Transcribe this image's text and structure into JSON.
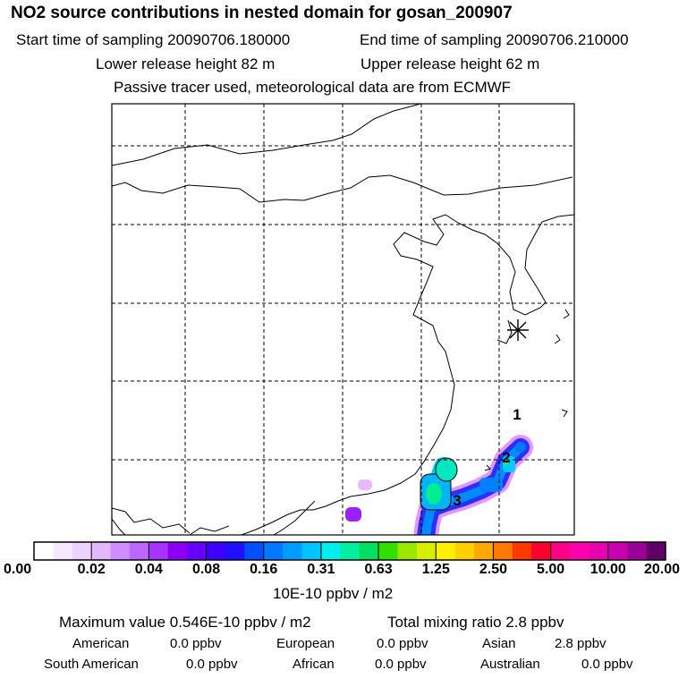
{
  "header": {
    "title": "NO2 source contributions in nested domain for gosan_200907",
    "start_time": "Start time of sampling 20090706.180000",
    "end_time": "End time of sampling 20090706.210000",
    "lower_height": "Lower release height   82 m",
    "upper_height": "Upper release height   62 m",
    "tracer_note": "Passive tracer used, meteorological data are from ECMWF"
  },
  "map": {
    "receptor_marker": "asterisk-icon",
    "labels": [
      "1",
      "2",
      "3"
    ]
  },
  "colorbar": {
    "colors": [
      "#ffffff",
      "#f7e8ff",
      "#efd3ff",
      "#e3b8ff",
      "#cf8cff",
      "#bd66ff",
      "#a832ff",
      "#8b00f5",
      "#6a00ff",
      "#4000ff",
      "#1f10ff",
      "#0050ff",
      "#0078ff",
      "#009cff",
      "#00c4ff",
      "#00eeee",
      "#00f0a0",
      "#00e060",
      "#30e000",
      "#9ae800",
      "#d8ee00",
      "#fff000",
      "#ffd000",
      "#ffa800",
      "#ff7800",
      "#ff3a00",
      "#ff0030",
      "#ff0088",
      "#ff00b0",
      "#e800b0",
      "#c800b0",
      "#9a0099",
      "#600066"
    ],
    "tick_labels": [
      "0.00",
      "0.02",
      "0.04",
      "0.08",
      "0.16",
      "0.31",
      "0.63",
      "1.25",
      "2.50",
      "5.00",
      "10.00",
      "20.00"
    ],
    "unit": "10E-10 ppbv / m2"
  },
  "stats": {
    "max_value": "Maximum value  0.546E-10 ppbv / m2",
    "total_mixing": "Total mixing ratio       2.8 ppbv",
    "american_label": "American",
    "american_value": "0.0 ppbv",
    "european_label": "European",
    "european_value": "0.0 ppbv",
    "asian_label": "Asian",
    "asian_value": "2.8 ppbv",
    "south_american_label": "South American",
    "south_american_value": "0.0 ppbv",
    "african_label": "African",
    "african_value": "0.0 ppbv",
    "australian_label": "Australian",
    "australian_value": "0.0 ppbv"
  }
}
